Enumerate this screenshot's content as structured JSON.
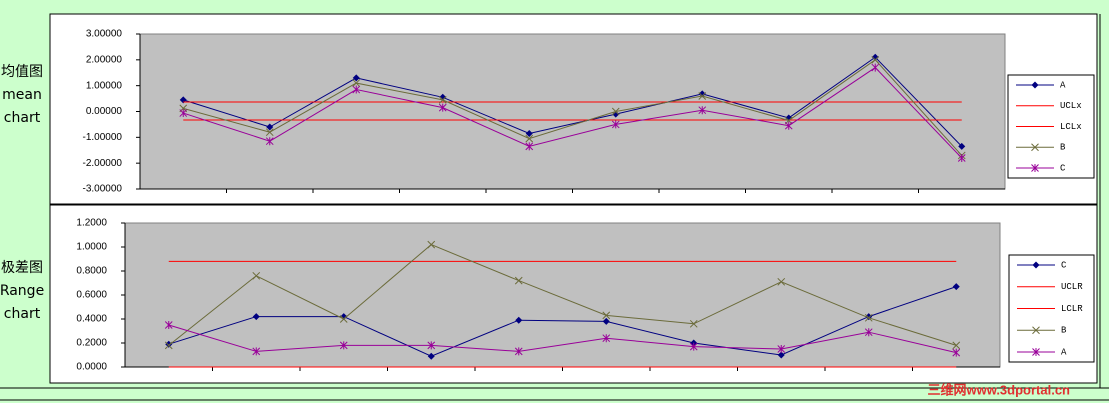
{
  "side_labels": [
    [
      "均值图",
      "mean",
      "chart"
    ],
    [
      "极差图",
      "Range",
      "chart"
    ]
  ],
  "watermark": "三维网www.3dportal.cn",
  "chart_data": [
    {
      "type": "line",
      "categories": [
        null,
        null,
        null,
        null,
        null,
        null,
        null,
        null,
        null,
        null
      ],
      "ylim": [
        -3,
        3
      ],
      "yticks": [
        {
          "value": -3,
          "label": "-3.00000"
        },
        {
          "value": -2,
          "label": "-2.00000"
        },
        {
          "value": -1,
          "label": "-1.00000"
        },
        {
          "value": 0,
          "label": "0.00000"
        },
        {
          "value": 1,
          "label": "1.00000"
        },
        {
          "value": 2,
          "label": "2.00000"
        },
        {
          "value": 3,
          "label": "3.00000"
        }
      ],
      "grid": false,
      "legend": "right",
      "plot_background": "#c0c0c0",
      "series": [
        {
          "name": "A",
          "color": "#000080",
          "marker": "diamond",
          "values": [
            0.45,
            -0.6,
            1.3,
            0.55,
            -0.85,
            -0.1,
            0.68,
            -0.25,
            2.1,
            -1.35
          ]
        },
        {
          "name": "UCLx",
          "color": "#ff0000",
          "marker": "none",
          "values": [
            0.37,
            0.37,
            0.37,
            0.37,
            0.37,
            0.37,
            0.37,
            0.37,
            0.37,
            0.37
          ]
        },
        {
          "name": "LCLx",
          "color": "#ff0000",
          "marker": "none",
          "values": [
            -0.33,
            -0.33,
            -0.33,
            -0.33,
            -0.33,
            -0.33,
            -0.33,
            -0.33,
            -0.33,
            -0.33
          ]
        },
        {
          "name": "B",
          "color": "#6b6b3a",
          "marker": "x",
          "values": [
            0.12,
            -0.8,
            1.1,
            0.45,
            -1.05,
            0.0,
            0.6,
            -0.35,
            2.0,
            -1.7
          ]
        },
        {
          "name": "C",
          "color": "#990099",
          "marker": "star",
          "values": [
            -0.06,
            -1.15,
            0.85,
            0.15,
            -1.35,
            -0.5,
            0.05,
            -0.55,
            1.7,
            -1.8
          ]
        }
      ]
    },
    {
      "type": "line",
      "categories": [
        null,
        null,
        null,
        null,
        null,
        null,
        null,
        null,
        null,
        null
      ],
      "ylim": [
        0,
        1.2
      ],
      "yticks": [
        {
          "value": 0,
          "label": "0.0000"
        },
        {
          "value": 0.2,
          "label": "0.2000"
        },
        {
          "value": 0.4,
          "label": "0.4000"
        },
        {
          "value": 0.6,
          "label": "0.6000"
        },
        {
          "value": 0.8,
          "label": "0.8000"
        },
        {
          "value": 1.0,
          "label": "1.0000"
        },
        {
          "value": 1.2,
          "label": "1.2000"
        }
      ],
      "grid": false,
      "legend": "right",
      "plot_background": "#c0c0c0",
      "series": [
        {
          "name": "C",
          "color": "#000080",
          "marker": "diamond",
          "values": [
            0.19,
            0.42,
            0.42,
            0.09,
            0.39,
            0.38,
            0.2,
            0.1,
            0.42,
            0.67
          ]
        },
        {
          "name": "UCLR",
          "color": "#ff0000",
          "marker": "none",
          "values": [
            0.88,
            0.88,
            0.88,
            0.88,
            0.88,
            0.88,
            0.88,
            0.88,
            0.88,
            0.88
          ]
        },
        {
          "name": "LCLR",
          "color": "#ff0000",
          "marker": "none",
          "values": [
            0,
            0,
            0,
            0,
            0,
            0,
            0,
            0,
            0,
            0
          ]
        },
        {
          "name": "B",
          "color": "#6b6b3a",
          "marker": "x",
          "values": [
            0.18,
            0.76,
            0.4,
            1.02,
            0.72,
            0.43,
            0.36,
            0.71,
            0.41,
            0.18
          ]
        },
        {
          "name": "A",
          "color": "#990099",
          "marker": "star",
          "values": [
            0.35,
            0.13,
            0.18,
            0.18,
            0.13,
            0.24,
            0.17,
            0.15,
            0.29,
            0.12
          ]
        }
      ]
    }
  ]
}
